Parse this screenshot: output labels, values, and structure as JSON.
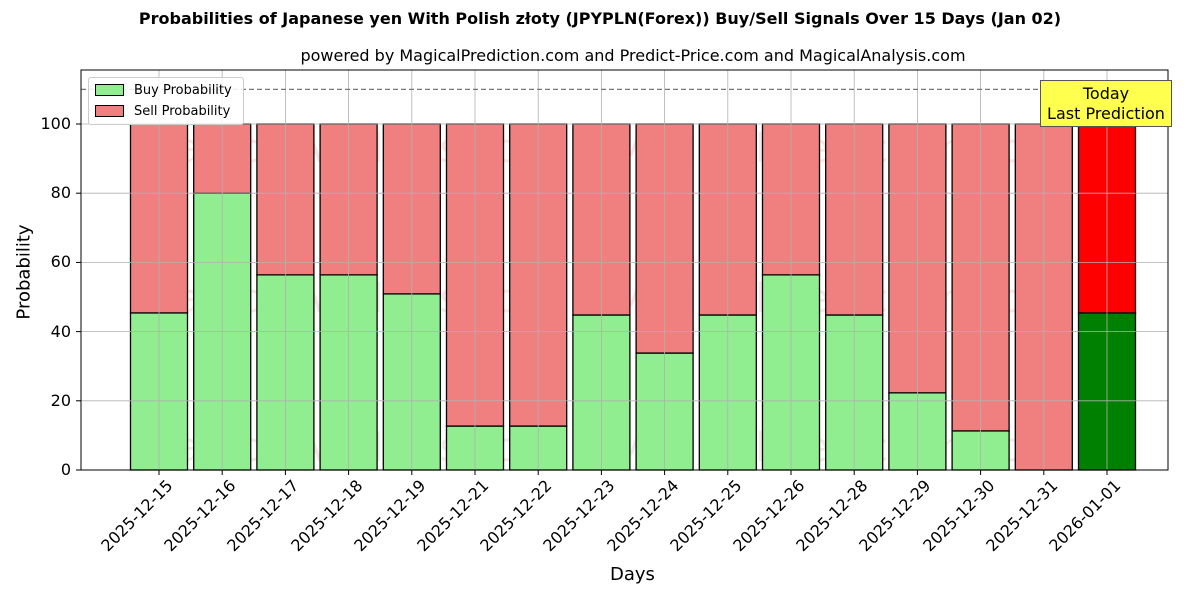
{
  "chart_data": {
    "type": "bar",
    "stacked": true,
    "title": "Probabilities of Japanese yen With Polish złoty (JPYPLN(Forex)) Buy/Sell Signals Over 15 Days (Jan 02)",
    "subtitle": "powered by MagicalPrediction.com and Predict-Price.com and MagicalAnalysis.com",
    "xlabel": "Days",
    "ylabel": "Probability",
    "ylim": [
      0,
      115
    ],
    "yticks": [
      0,
      20,
      40,
      60,
      80,
      100
    ],
    "grid": true,
    "legend_position": "upper left",
    "reference_line": {
      "y": 110,
      "style": "dashed"
    },
    "categories": [
      "2025-12-15",
      "2025-12-16",
      "2025-12-17",
      "2025-12-18",
      "2025-12-19",
      "2025-12-21",
      "2025-12-22",
      "2025-12-23",
      "2025-12-24",
      "2025-12-25",
      "2025-12-26",
      "2025-12-28",
      "2025-12-29",
      "2025-12-30",
      "2025-12-31",
      "2026-01-01"
    ],
    "series": [
      {
        "name": "Buy Probability",
        "color": "#90ee90",
        "values": [
          45.4,
          80.0,
          56.4,
          56.4,
          50.9,
          12.7,
          12.7,
          44.8,
          33.8,
          44.8,
          56.4,
          44.8,
          22.3,
          11.3,
          0.0,
          45.4
        ]
      },
      {
        "name": "Sell Probability",
        "color": "#f08080",
        "values": [
          54.6,
          20.0,
          43.6,
          43.6,
          49.1,
          87.3,
          87.3,
          55.2,
          66.2,
          55.2,
          43.6,
          55.2,
          77.7,
          88.7,
          100.0,
          54.6
        ]
      }
    ],
    "highlight": {
      "index": 15,
      "buy_color": "#008000",
      "sell_color": "#ff0000",
      "annotation": "Today\nLast Prediction"
    },
    "watermarks": [
      "MagicalAnalysis.com",
      "MagicalPrediction.com"
    ]
  },
  "legend": {
    "buy_label": "Buy Probability",
    "sell_label": "Sell Probability"
  },
  "annotation": {
    "line1": "Today",
    "line2": "Last Prediction"
  }
}
